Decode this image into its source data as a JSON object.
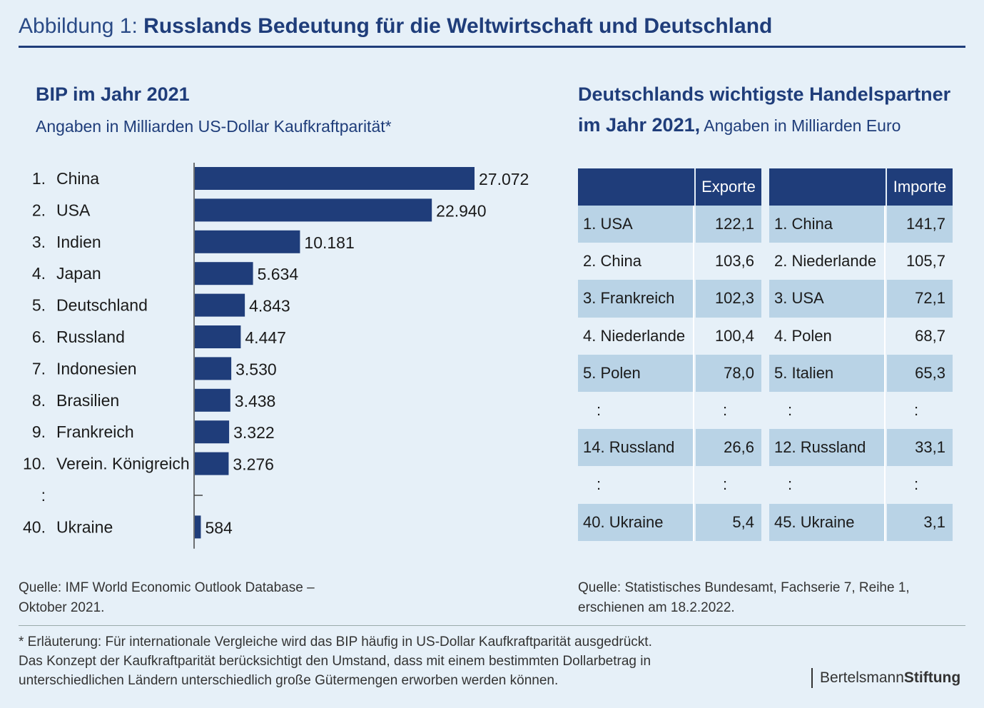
{
  "header": {
    "prefix": "Abbildung 1:",
    "title": "Russlands Bedeutung für die Weltwirtschaft und Deutschland"
  },
  "left": {
    "title": "BIP im Jahr 2021",
    "subtitle": "Angaben in Milliarden US-Dollar Kaufkraftparität*",
    "source_line1": "Quelle: IMF World Economic Outlook Database –",
    "source_line2": "Oktober 2021."
  },
  "right": {
    "title_line1": "Deutschlands wichtigste Handelspartner",
    "title_line2_bold": "im Jahr 2021,",
    "title_line2_rest": " Angaben in Milliarden Euro",
    "source_line1": "Quelle: Statistisches Bundesamt, Fachserie 7, Reihe 1,",
    "source_line2": "erschienen am 18.2.2022."
  },
  "chart_data": {
    "type": "bar",
    "orientation": "horizontal",
    "title": "BIP im Jahr 2021",
    "subtitle": "Angaben in Milliarden US-Dollar Kaufkraftparität*",
    "ranks": [
      "1.",
      "2.",
      "3.",
      "4.",
      "5.",
      "6.",
      "7.",
      "8.",
      "9.",
      "10.",
      ":",
      "40."
    ],
    "categories": [
      "China",
      "USA",
      "Indien",
      "Japan",
      "Deutschland",
      "Russland",
      "Indonesien",
      "Brasilien",
      "Frankreich",
      "Verein. Königreich",
      "",
      "Ukraine"
    ],
    "values": [
      27072,
      22940,
      10181,
      5634,
      4843,
      4447,
      3530,
      3438,
      3322,
      3276,
      null,
      584
    ],
    "value_labels": [
      "27.072",
      "22.940",
      "10.181",
      "5.634",
      "4.843",
      "4.447",
      "3.530",
      "3.438",
      "3.322",
      "3.276",
      "",
      "584"
    ],
    "bar_color": "#1f3d7a"
  },
  "trade_tables": {
    "exports": {
      "header": "Exporte",
      "rows": [
        {
          "country": "1. USA",
          "value": "122,1"
        },
        {
          "country": "2. China",
          "value": "103,6"
        },
        {
          "country": "3. Frankreich",
          "value": "102,3"
        },
        {
          "country": "4. Niederlande",
          "value": "100,4"
        },
        {
          "country": "5. Polen",
          "value": "78,0"
        },
        {
          "country": ":",
          "value": ":"
        },
        {
          "country": "14. Russland",
          "value": "26,6"
        },
        {
          "country": ":",
          "value": ":"
        },
        {
          "country": "40. Ukraine",
          "value": "5,4"
        }
      ]
    },
    "imports": {
      "header": "Importe",
      "rows": [
        {
          "country": "1. China",
          "value": "141,7"
        },
        {
          "country": "2. Niederlande",
          "value": "105,7"
        },
        {
          "country": "3. USA",
          "value": "72,1"
        },
        {
          "country": "4. Polen",
          "value": "68,7"
        },
        {
          "country": "5. Italien",
          "value": "65,3"
        },
        {
          "country": ":",
          "value": ":"
        },
        {
          "country": "12. Russland",
          "value": "33,1"
        },
        {
          "country": ":",
          "value": ":"
        },
        {
          "country": "45. Ukraine",
          "value": "3,1"
        }
      ]
    },
    "colors": {
      "header": "#1f3d7a",
      "shaded": "#b9d3e6",
      "plain": "#e6f0f8"
    }
  },
  "footnote": {
    "line1": "* Erläuterung: Für internationale Vergleiche wird das BIP häufig in US-Dollar Kaufkraftparität ausgedrückt.",
    "line2": "Das Konzept der Kaufkraftparität berücksichtigt den Umstand, dass mit einem bestimmten Dollarbetrag in",
    "line3": "unterschiedlichen Ländern unterschiedlich große Gütermengen erworben werden können."
  },
  "brand": {
    "part1": "Bertelsmann",
    "part2": "Stiftung"
  }
}
